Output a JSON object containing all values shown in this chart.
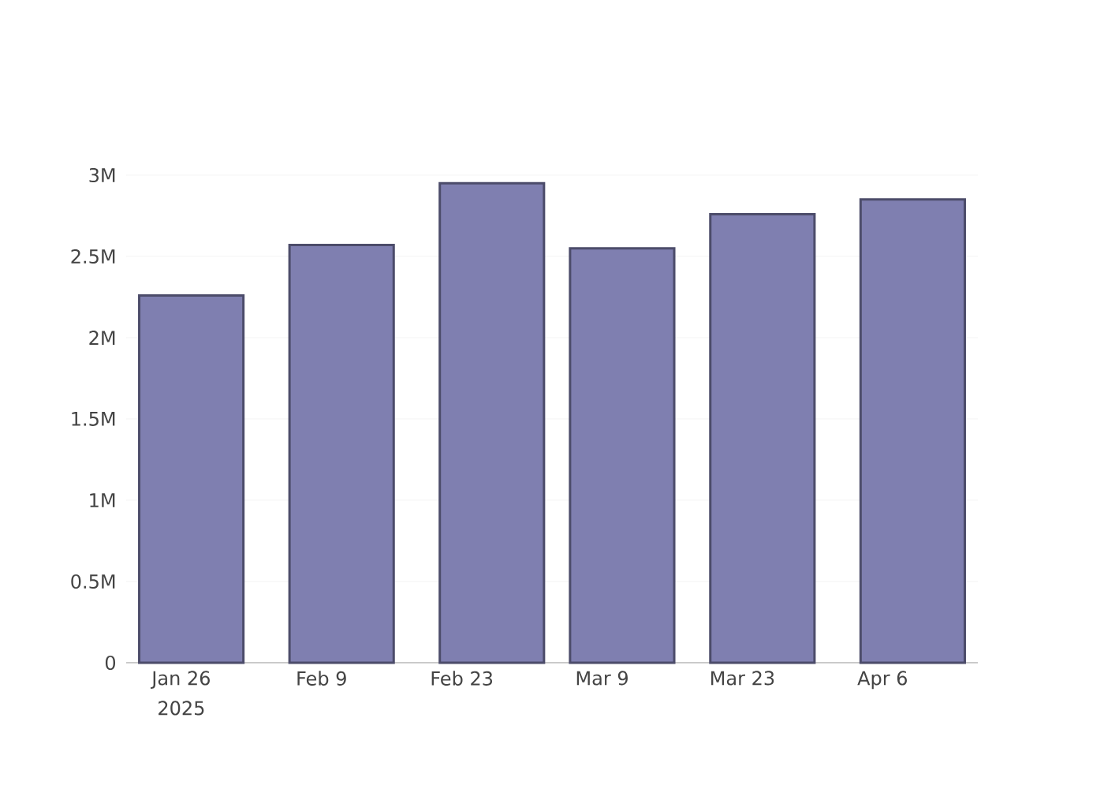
{
  "chart_data": {
    "type": "bar",
    "x": [
      "2025-01-27",
      "2025-02-11",
      "2025-02-26",
      "2025-03-11",
      "2025-03-25",
      "2025-04-09"
    ],
    "values": [
      2260000,
      2570000,
      2950000,
      2550000,
      2760000,
      2850000
    ],
    "color": "#7f7fb0",
    "xlim": [
      "2025-01-20T12:00",
      "2025-04-15T12:00"
    ],
    "xticks": [
      {
        "value": "2025-01-26",
        "label": "Jan 26"
      },
      {
        "value": "2025-02-09",
        "label": "Feb 9"
      },
      {
        "value": "2025-02-23",
        "label": "Feb 23"
      },
      {
        "value": "2025-03-09",
        "label": "Mar 9"
      },
      {
        "value": "2025-03-23",
        "label": "Mar 23"
      },
      {
        "value": "2025-04-06",
        "label": "Apr 6"
      }
    ],
    "ylim": [
      0,
      3000000
    ],
    "yticks": [
      0,
      {
        "value": 500000,
        "label": "0.5M"
      },
      {
        "value": 1000000,
        "label": "1M"
      },
      {
        "value": 1500000,
        "label": "1.5M"
      },
      {
        "value": 2000000,
        "label": "2M"
      },
      {
        "value": 2500000,
        "label": "2.5M"
      },
      {
        "value": 3000000,
        "label": "3M"
      }
    ],
    "grid": "y",
    "annotations": [
      "2025"
    ]
  }
}
